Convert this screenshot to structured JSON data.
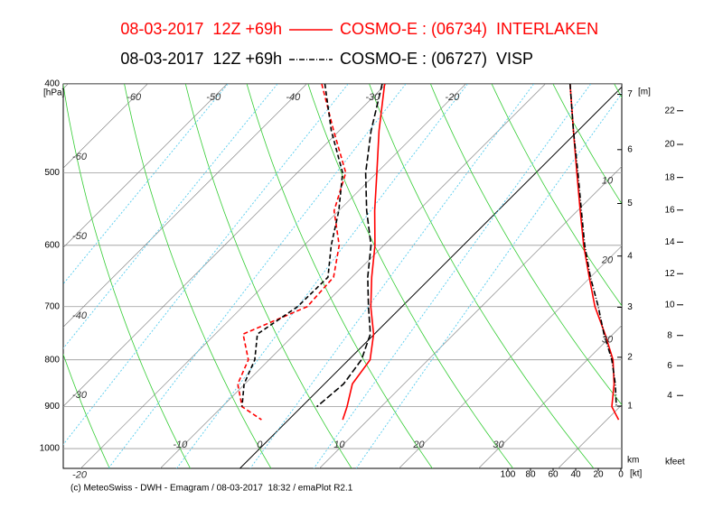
{
  "chart_data": {
    "type": "emagram",
    "ylabel": "[hPa]",
    "ylim": [
      400,
      1051
    ],
    "yticks": [
      400,
      500,
      600,
      700,
      800,
      900,
      1000
    ],
    "log_y": true,
    "xlim": [
      -22.2,
      48.0
    ],
    "xticks": [
      -10,
      0,
      10,
      20,
      30
    ],
    "isotherm_labels_top": [
      -60,
      -50,
      -40,
      -30,
      -20
    ],
    "isotherm_labels_left": [
      -60,
      -50,
      -40,
      -30,
      -20
    ],
    "isotherm_labels_right": [
      10,
      20,
      30
    ],
    "isotherms": [
      -100,
      -90,
      -80,
      -70,
      -60,
      -50,
      -40,
      -30,
      -20,
      -10,
      0,
      10,
      20,
      30,
      40,
      50
    ],
    "dry_adiabats": [
      -40,
      -30,
      -20,
      -10,
      0,
      10,
      20,
      30,
      40,
      50,
      60,
      70,
      80,
      90,
      100
    ],
    "mixing_ratios": [
      0.1,
      0.2,
      0.5,
      1,
      2,
      4,
      7,
      10
    ],
    "height_label": "[m]",
    "height_bottom_label": "km",
    "height_km_ticks": [
      1,
      2,
      3,
      4,
      5,
      6,
      7
    ],
    "kfeet_label": "kfeet",
    "kfeet_ticks": [
      4,
      6,
      8,
      10,
      12,
      14,
      16,
      18,
      20,
      22
    ],
    "wind_label": "[kt]",
    "wind_lim": [
      0,
      100
    ],
    "wind_ticks": [
      100,
      80,
      60,
      40,
      20,
      0
    ],
    "footer": "(c) MeteoSwiss - DWH - Emagram / 08-03-2017  18:32 / emaPlot R2.1",
    "series": [
      {
        "name": "08-03-2017  12Z +69h",
        "source": "COSMO-E : (06734)  INTERLAKEN",
        "color": "#ff0000",
        "line_style": "solid",
        "levels": [
          400,
          450,
          500,
          550,
          600,
          650,
          700,
          750,
          800,
          850,
          900,
          930
        ],
        "temperature": [
          -30.2,
          -25,
          -20,
          -15.5,
          -11.1,
          -7.5,
          -3.9,
          -0.1,
          2.7,
          3.5,
          5.7,
          6.8
        ],
        "dewpoint": [
          -38.1,
          -30.7,
          -23.9,
          -20.6,
          -15.6,
          -12.3,
          -11.9,
          -16.5,
          -12.6,
          -10.9,
          -7.5,
          -3.4
        ],
        "wind_speed": [
          45,
          42,
          39,
          36,
          33,
          28,
          23,
          14,
          7,
          6,
          8,
          2
        ]
      },
      {
        "name": "08-03-2017  12Z +69h",
        "source": "COSMO-E : (06727)  VISP",
        "color": "#000000",
        "line_style": "dashdot",
        "levels": [
          400,
          450,
          500,
          550,
          600,
          650,
          700,
          750,
          800,
          850,
          900
        ],
        "temperature": [
          -30.5,
          -26,
          -21.4,
          -16.5,
          -11.6,
          -8,
          -4.2,
          -0.5,
          1.6,
          2.4,
          1.9
        ],
        "dewpoint": [
          -37.7,
          -31,
          -24.3,
          -20,
          -16.6,
          -13,
          -13.1,
          -14.7,
          -11.8,
          -10.1,
          -7.5
        ],
        "wind_speed": [
          45,
          42,
          38,
          35,
          32,
          27,
          20,
          15,
          8,
          5,
          4
        ]
      }
    ]
  }
}
